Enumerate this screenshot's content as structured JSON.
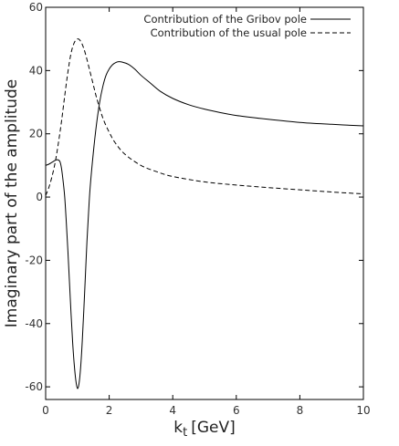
{
  "chart_data": {
    "type": "line",
    "title": "",
    "xlabel_main": "k",
    "xlabel_sub": "t",
    "xlabel_unit": "[GeV]",
    "ylabel": "Imaginary part of the amplitude",
    "xlim": [
      0,
      10
    ],
    "ylim": [
      -64,
      60
    ],
    "grid": false,
    "legend_position": "top-right",
    "x_ticks": [
      0,
      2,
      4,
      6,
      8,
      10
    ],
    "y_ticks": [
      -60,
      -40,
      -20,
      0,
      20,
      40,
      60
    ],
    "series": [
      {
        "name": "Contribution of the Gribov pole",
        "style": "solid",
        "color": "#000000",
        "points": [
          [
            0,
            10
          ],
          [
            0.1,
            10.4
          ],
          [
            0.2,
            11
          ],
          [
            0.3,
            11.6
          ],
          [
            0.38,
            11.8
          ],
          [
            0.45,
            11.2
          ],
          [
            0.5,
            9
          ],
          [
            0.55,
            5
          ],
          [
            0.6,
            0
          ],
          [
            0.65,
            -8
          ],
          [
            0.7,
            -17
          ],
          [
            0.75,
            -27
          ],
          [
            0.8,
            -37
          ],
          [
            0.85,
            -46
          ],
          [
            0.9,
            -53
          ],
          [
            0.95,
            -58
          ],
          [
            1.0,
            -60.5
          ],
          [
            1.05,
            -59
          ],
          [
            1.1,
            -54
          ],
          [
            1.15,
            -46
          ],
          [
            1.2,
            -36
          ],
          [
            1.25,
            -25
          ],
          [
            1.3,
            -14
          ],
          [
            1.35,
            -5
          ],
          [
            1.4,
            3
          ],
          [
            1.5,
            14
          ],
          [
            1.6,
            23
          ],
          [
            1.7,
            30
          ],
          [
            1.8,
            35
          ],
          [
            1.9,
            38.5
          ],
          [
            2.0,
            40.5
          ],
          [
            2.1,
            41.8
          ],
          [
            2.2,
            42.5
          ],
          [
            2.3,
            42.8
          ],
          [
            2.4,
            42.7
          ],
          [
            2.6,
            42
          ],
          [
            2.8,
            40.5
          ],
          [
            3.0,
            38.5
          ],
          [
            3.3,
            36
          ],
          [
            3.6,
            33.5
          ],
          [
            4.0,
            31.2
          ],
          [
            4.5,
            29.2
          ],
          [
            5.0,
            27.8
          ],
          [
            5.5,
            26.7
          ],
          [
            6.0,
            25.8
          ],
          [
            7.0,
            24.6
          ],
          [
            8.0,
            23.6
          ],
          [
            9.0,
            23
          ],
          [
            10.0,
            22.5
          ]
        ]
      },
      {
        "name": "Contribution of the usual pole",
        "style": "dashed",
        "color": "#000000",
        "points": [
          [
            0,
            0.5
          ],
          [
            0.1,
            3
          ],
          [
            0.2,
            6.5
          ],
          [
            0.3,
            11
          ],
          [
            0.4,
            17
          ],
          [
            0.5,
            24
          ],
          [
            0.6,
            32
          ],
          [
            0.7,
            39.5
          ],
          [
            0.8,
            45.5
          ],
          [
            0.9,
            48.8
          ],
          [
            1.0,
            50
          ],
          [
            1.1,
            49.3
          ],
          [
            1.2,
            47
          ],
          [
            1.3,
            43.5
          ],
          [
            1.4,
            39.5
          ],
          [
            1.5,
            35.5
          ],
          [
            1.6,
            31.5
          ],
          [
            1.8,
            25
          ],
          [
            2.0,
            20.5
          ],
          [
            2.2,
            17
          ],
          [
            2.5,
            13.5
          ],
          [
            3.0,
            10
          ],
          [
            3.5,
            8
          ],
          [
            4.0,
            6.5
          ],
          [
            5.0,
            4.8
          ],
          [
            6.0,
            3.8
          ],
          [
            7.0,
            3
          ],
          [
            8.0,
            2.3
          ],
          [
            9.0,
            1.6
          ],
          [
            10.0,
            1
          ]
        ]
      }
    ]
  }
}
